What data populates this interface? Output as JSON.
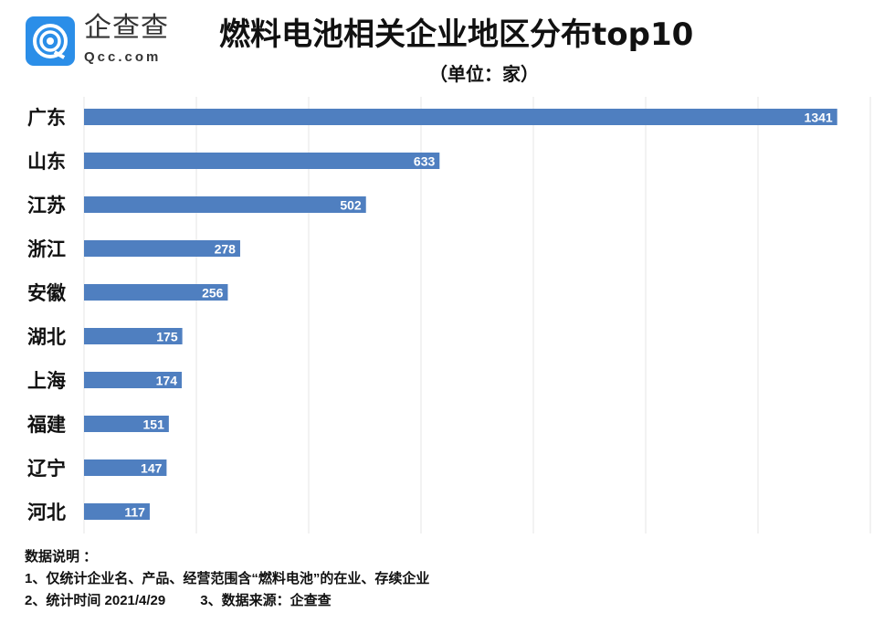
{
  "logo": {
    "cn": "企查查",
    "en": "Qcc.com",
    "color": "#2b8ee8"
  },
  "chart_data": {
    "type": "bar",
    "orientation": "horizontal",
    "title": "燃料电池相关企业地区分布top10",
    "subtitle": "（单位：家）",
    "categories": [
      "广东",
      "山东",
      "江苏",
      "浙江",
      "安徽",
      "湖北",
      "上海",
      "福建",
      "辽宁",
      "河北"
    ],
    "values": [
      1341,
      633,
      502,
      278,
      256,
      175,
      174,
      151,
      147,
      117
    ],
    "xlim": [
      0,
      1400
    ],
    "grid": true,
    "bar_color": "#4f7fc0",
    "data_labels": true
  },
  "notes": {
    "heading": "数据说明 ：",
    "line1": "1、仅统计企业名、产品、经营范围含“燃料电池”的在业、存续企业",
    "line2a": "2、统计时间 2021/4/29",
    "line2b": "3、数据来源：企查查"
  }
}
